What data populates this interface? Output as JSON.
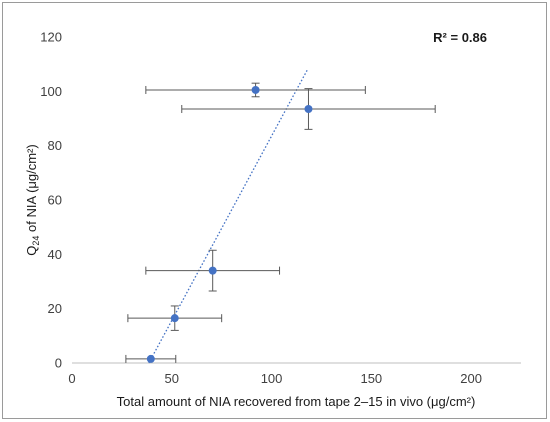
{
  "chart_data": {
    "type": "scatter",
    "title": "",
    "xlabel": "Total amount of NIA recovered from tape 2–15 in vivo (μg/cm²)",
    "ylabel": {
      "prefix": "Q",
      "subscript": "24",
      "suffix": " of NIA (μg/cm²)"
    },
    "annotation": "R² = 0.86",
    "xlim": [
      0,
      225
    ],
    "ylim": [
      0,
      120
    ],
    "x_ticks": [
      0,
      50,
      100,
      150,
      200
    ],
    "y_ticks": [
      0,
      20,
      40,
      60,
      80,
      100,
      120
    ],
    "grid": false,
    "series": [
      {
        "points": [
          {
            "x": 39.5,
            "y": 1.5,
            "x_err": 12.5,
            "y_err": 0
          },
          {
            "x": 51.5,
            "y": 16.5,
            "x_err": 23.5,
            "y_err": 4.5
          },
          {
            "x": 70.5,
            "y": 34,
            "x_err": 33.5,
            "y_err": 7.5
          },
          {
            "x": 92,
            "y": 100.5,
            "x_err": 55,
            "y_err": 2.5
          },
          {
            "x": 118.5,
            "y": 93.5,
            "x_err": 63.5,
            "y_err": 7.5
          }
        ]
      }
    ],
    "trendline": {
      "type": "linear",
      "from": [
        38.5,
        0
      ],
      "to": [
        118,
        108
      ]
    },
    "colors": {
      "marker": "#4472c4",
      "error_bar": "#595959",
      "trendline": "#4472c4",
      "axis": "#bfbfbf"
    }
  }
}
